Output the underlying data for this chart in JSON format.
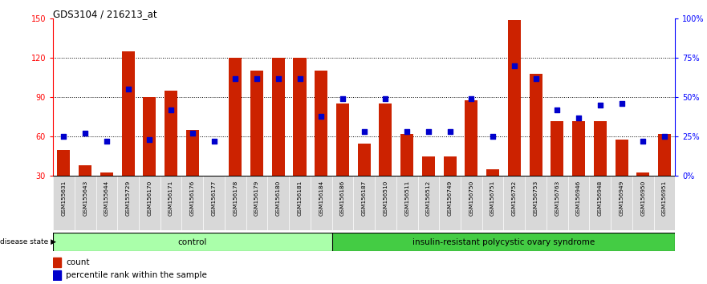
{
  "title": "GDS3104 / 216213_at",
  "samples": [
    "GSM155631",
    "GSM155643",
    "GSM155644",
    "GSM155729",
    "GSM156170",
    "GSM156171",
    "GSM156176",
    "GSM156177",
    "GSM156178",
    "GSM156179",
    "GSM156180",
    "GSM156181",
    "GSM156184",
    "GSM156186",
    "GSM156187",
    "GSM156510",
    "GSM156511",
    "GSM156512",
    "GSM156749",
    "GSM156750",
    "GSM156751",
    "GSM156752",
    "GSM156753",
    "GSM156763",
    "GSM156946",
    "GSM156948",
    "GSM156949",
    "GSM156950",
    "GSM156951"
  ],
  "counts": [
    50,
    38,
    33,
    125,
    90,
    95,
    65,
    28,
    120,
    110,
    120,
    120,
    110,
    85,
    55,
    85,
    62,
    45,
    45,
    88,
    35,
    149,
    108,
    72,
    72,
    72,
    58,
    33,
    62
  ],
  "percentile_ranks": [
    25,
    27,
    22,
    55,
    23,
    42,
    27,
    22,
    62,
    62,
    62,
    62,
    38,
    49,
    28,
    49,
    28,
    28,
    28,
    49,
    25,
    70,
    62,
    42,
    37,
    45,
    46,
    22,
    25
  ],
  "control_count": 13,
  "bar_color": "#cc2200",
  "dot_color": "#0000cc",
  "left_ylim": [
    30,
    150
  ],
  "right_ylim": [
    0,
    100
  ],
  "left_yticks": [
    30,
    60,
    90,
    120,
    150
  ],
  "right_yticks": [
    0,
    25,
    50,
    75,
    100
  ],
  "right_yticklabels": [
    "0%",
    "25%",
    "50%",
    "75%",
    "100%"
  ],
  "grid_values": [
    60,
    90,
    120
  ],
  "control_label": "control",
  "disease_label": "insulin-resistant polycystic ovary syndrome",
  "control_color": "#aaffaa",
  "disease_color": "#44cc44",
  "legend_count_label": "count",
  "legend_pct_label": "percentile rank within the sample",
  "disease_state_label": "disease state"
}
